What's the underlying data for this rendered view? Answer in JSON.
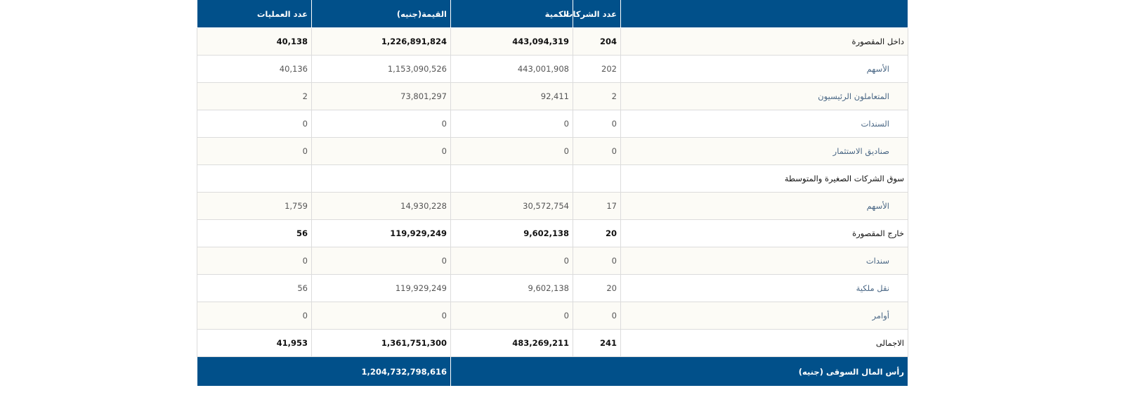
{
  "headers": {
    "label": "",
    "companies": "عدد الشركات",
    "quantity": "الكمية",
    "value": "القيمة(جنيه)",
    "operations": "عدد العمليات"
  },
  "rows": [
    {
      "type": "main",
      "label": "داخل المقصورة",
      "companies": "204",
      "quantity": "443,094,319",
      "value": "1,226,891,824",
      "operations": "40,138"
    },
    {
      "type": "sub",
      "label": "الأسهم",
      "companies": "202",
      "quantity": "443,001,908",
      "value": "1,153,090,526",
      "operations": "40,136"
    },
    {
      "type": "sub",
      "label": "المتعاملون الرئيسيون",
      "companies": "2",
      "quantity": "92,411",
      "value": "73,801,297",
      "operations": "2"
    },
    {
      "type": "sub",
      "label": "السندات",
      "companies": "0",
      "quantity": "0",
      "value": "0",
      "operations": "0"
    },
    {
      "type": "sub",
      "label": "صناديق الاستثمار",
      "companies": "0",
      "quantity": "0",
      "value": "0",
      "operations": "0"
    },
    {
      "type": "main",
      "label": "سوق الشركات الصغيرة والمتوسطة",
      "companies": "",
      "quantity": "",
      "value": "",
      "operations": ""
    },
    {
      "type": "sub",
      "label": "الأسهم",
      "companies": "17",
      "quantity": "30,572,754",
      "value": "14,930,228",
      "operations": "1,759"
    },
    {
      "type": "main",
      "label": "خارج المقصورة",
      "companies": "20",
      "quantity": "9,602,138",
      "value": "119,929,249",
      "operations": "56"
    },
    {
      "type": "sub",
      "label": "سندات",
      "companies": "0",
      "quantity": "0",
      "value": "0",
      "operations": "0"
    },
    {
      "type": "sub",
      "label": "نقل ملكية",
      "companies": "20",
      "quantity": "9,602,138",
      "value": "119,929,249",
      "operations": "56"
    },
    {
      "type": "sub",
      "label": "أوامر",
      "companies": "0",
      "quantity": "0",
      "value": "0",
      "operations": "0"
    },
    {
      "type": "main",
      "label": "الاجمالى",
      "companies": "241",
      "quantity": "483,269,211",
      "value": "1,361,751,300",
      "operations": "41,953"
    }
  ],
  "footer": {
    "label": "رأس المال السوقى (جنيه)",
    "value": "1,204,732,798,616"
  }
}
